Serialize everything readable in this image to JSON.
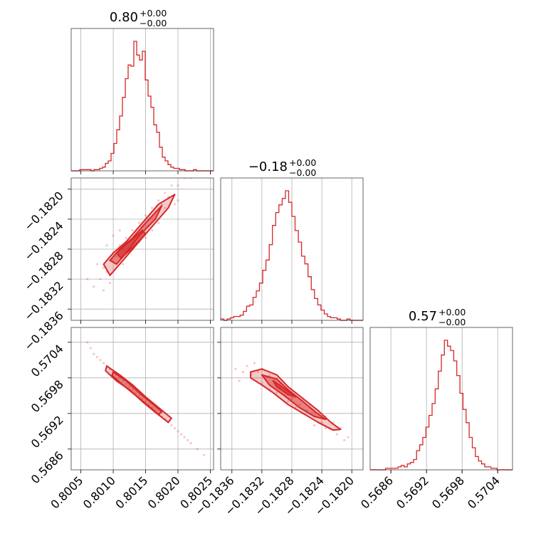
{
  "chart_data": {
    "type": "corner",
    "color": "#d62728",
    "parameters": [
      {
        "title_value": "0.80",
        "title_plus": "+0.00",
        "title_minus": "−0.00",
        "range": [
          0.80035,
          0.80255
        ],
        "ticks": [
          0.8005,
          0.801,
          0.8015,
          0.802,
          0.8025
        ],
        "tick_labels": [
          "0.8005",
          "0.8010",
          "0.8015",
          "0.8020",
          "0.8025"
        ],
        "hist": {
          "edges_start": 0.80035,
          "edges_end": 0.80255,
          "counts": [
            0,
            0,
            0,
            1,
            1,
            1,
            1,
            0,
            1,
            1,
            2,
            3,
            6,
            8,
            14,
            22,
            33,
            44,
            59,
            74,
            85,
            84,
            104,
            93,
            89,
            96,
            73,
            60,
            51,
            37,
            31,
            19,
            11,
            8,
            5,
            3,
            2,
            2,
            1,
            1,
            0,
            0,
            0,
            1,
            0,
            0,
            0,
            0,
            0,
            0
          ]
        }
      },
      {
        "title_value": "−0.18",
        "title_plus": "+0.00",
        "title_minus": "−0.00",
        "range": [
          -0.18375,
          -0.18185
        ],
        "ticks": [
          -0.1836,
          -0.1832,
          -0.1828,
          -0.1824,
          -0.182
        ],
        "tick_labels": [
          "−0.1836",
          "−0.1832",
          "−0.1828",
          "−0.1824",
          "−0.1820"
        ],
        "hist": {
          "edges_start": -0.18375,
          "edges_end": -0.18185,
          "counts": [
            1,
            0,
            1,
            2,
            3,
            3,
            4,
            7,
            11,
            12,
            18,
            23,
            29,
            39,
            47,
            59,
            74,
            84,
            90,
            95,
            101,
            92,
            81,
            70,
            61,
            50,
            44,
            34,
            24,
            17,
            12,
            8,
            5,
            3,
            2,
            2,
            1,
            0,
            0,
            1,
            0,
            0,
            0,
            0
          ]
        }
      },
      {
        "title_value": "0.57",
        "title_plus": "+0.00",
        "title_minus": "−0.00",
        "range": [
          0.56825,
          0.57065
        ],
        "ticks": [
          0.5686,
          0.5692,
          0.5698,
          0.5704
        ],
        "tick_labels": [
          "0.5686",
          "0.5692",
          "0.5698",
          "0.5704"
        ],
        "hist": {
          "edges_start": 0.56825,
          "edges_end": 0.57065,
          "counts": [
            0,
            0,
            0,
            0,
            0,
            1,
            1,
            1,
            1,
            2,
            3,
            2,
            4,
            5,
            7,
            13,
            17,
            22,
            29,
            37,
            45,
            55,
            67,
            78,
            88,
            84,
            81,
            74,
            64,
            52,
            41,
            32,
            22,
            15,
            9,
            6,
            4,
            2,
            2,
            1,
            1,
            0,
            0,
            0,
            0,
            0
          ]
        }
      }
    ],
    "pairs": [
      {
        "row": 1,
        "col": 0,
        "points": [
          [
            0.80085,
            -0.18305
          ],
          [
            0.80095,
            -0.18295
          ],
          [
            0.801,
            -0.18285
          ],
          [
            0.8011,
            -0.18275
          ],
          [
            0.8012,
            -0.18265
          ],
          [
            0.8013,
            -0.18255
          ],
          [
            0.8014,
            -0.18245
          ],
          [
            0.8015,
            -0.18235
          ],
          [
            0.8016,
            -0.18225
          ],
          [
            0.8017,
            -0.18215
          ],
          [
            0.8018,
            -0.18205
          ],
          [
            0.8019,
            -0.18195
          ],
          [
            0.8008,
            -0.1832
          ],
          [
            0.8009,
            -0.1831
          ],
          [
            0.80105,
            -0.1829
          ],
          [
            0.80115,
            -0.1828
          ],
          [
            0.80125,
            -0.1827
          ],
          [
            0.80135,
            -0.1826
          ],
          [
            0.80145,
            -0.1825
          ],
          [
            0.80155,
            -0.1824
          ],
          [
            0.80165,
            -0.1823
          ],
          [
            0.80175,
            -0.1822
          ],
          [
            0.80185,
            -0.1821
          ],
          [
            0.802,
            -0.18195
          ],
          [
            0.8021,
            -0.18185
          ],
          [
            0.8022,
            -0.18185
          ],
          [
            0.8006,
            -0.1832
          ],
          [
            0.8007,
            -0.1833
          ],
          [
            0.80075,
            -0.183
          ],
          [
            0.8009,
            -0.18275
          ],
          [
            0.801,
            -0.18262
          ],
          [
            0.8011,
            -0.18255
          ],
          [
            0.8012,
            -0.1829
          ],
          [
            0.8013,
            -0.1828
          ],
          [
            0.8014,
            -0.1827
          ],
          [
            0.8016,
            -0.18255
          ],
          [
            0.8017,
            -0.18245
          ],
          [
            0.8018,
            -0.18225
          ],
          [
            0.802,
            -0.18215
          ],
          [
            0.80085,
            -0.18335
          ],
          [
            0.80095,
            -0.18325
          ],
          [
            0.80115,
            -0.183
          ],
          [
            0.8015,
            -0.18265
          ],
          [
            0.80195,
            -0.1822
          ]
        ],
        "contours": [
          [
            [
              0.80085,
              -0.183
            ],
            [
              0.801,
              -0.18285
            ],
            [
              0.8012,
              -0.1827
            ],
            [
              0.80145,
              -0.18245
            ],
            [
              0.8017,
              -0.1822
            ],
            [
              0.80195,
              -0.18207
            ],
            [
              0.80185,
              -0.18225
            ],
            [
              0.8016,
              -0.1825
            ],
            [
              0.80135,
              -0.18275
            ],
            [
              0.8011,
              -0.183
            ],
            [
              0.80095,
              -0.18315
            ]
          ],
          [
            [
              0.80095,
              -0.18295
            ],
            [
              0.8011,
              -0.1828
            ],
            [
              0.8013,
              -0.18265
            ],
            [
              0.8015,
              -0.18245
            ],
            [
              0.80175,
              -0.18222
            ],
            [
              0.80165,
              -0.1824
            ],
            [
              0.8014,
              -0.18262
            ],
            [
              0.8012,
              -0.18285
            ],
            [
              0.80105,
              -0.183
            ]
          ],
          [
            [
              0.80105,
              -0.18285
            ],
            [
              0.80125,
              -0.1827
            ],
            [
              0.80145,
              -0.18255
            ],
            [
              0.8015,
              -0.1826
            ],
            [
              0.8013,
              -0.18278
            ],
            [
              0.80112,
              -0.18292
            ]
          ]
        ]
      },
      {
        "row": 2,
        "col": 0,
        "points": [
          [
            0.8008,
            0.5701
          ],
          [
            0.8009,
            0.57
          ],
          [
            0.801,
            0.5699
          ],
          [
            0.8011,
            0.5698
          ],
          [
            0.8012,
            0.5697
          ],
          [
            0.8013,
            0.5696
          ],
          [
            0.8014,
            0.5695
          ],
          [
            0.8015,
            0.5694
          ],
          [
            0.8016,
            0.5693
          ],
          [
            0.8017,
            0.5692
          ],
          [
            0.8018,
            0.5691
          ],
          [
            0.8019,
            0.569
          ],
          [
            0.802,
            0.5689
          ],
          [
            0.8021,
            0.5688
          ],
          [
            0.8022,
            0.5687
          ],
          [
            0.8023,
            0.5686
          ],
          [
            0.80085,
            0.57005
          ],
          [
            0.80095,
            0.56995
          ],
          [
            0.80105,
            0.56985
          ],
          [
            0.80115,
            0.56975
          ],
          [
            0.80125,
            0.56965
          ],
          [
            0.80135,
            0.56955
          ],
          [
            0.80145,
            0.56945
          ],
          [
            0.80155,
            0.56935
          ],
          [
            0.80165,
            0.56925
          ],
          [
            0.80175,
            0.56915
          ],
          [
            0.80185,
            0.56905
          ],
          [
            0.80195,
            0.56895
          ],
          [
            0.8007,
            0.5702
          ],
          [
            0.8006,
            0.5704
          ],
          [
            0.80065,
            0.5703
          ],
          [
            0.80075,
            0.57015
          ],
          [
            0.80205,
            0.56885
          ],
          [
            0.80215,
            0.56875
          ],
          [
            0.8024,
            0.5685
          ]
        ],
        "contours": [
          [
            [
              0.8009,
              0.57
            ],
            [
              0.8011,
              0.56985
            ],
            [
              0.8013,
              0.56968
            ],
            [
              0.8015,
              0.56948
            ],
            [
              0.8017,
              0.5693
            ],
            [
              0.8019,
              0.56912
            ],
            [
              0.80185,
              0.56905
            ],
            [
              0.80165,
              0.56922
            ],
            [
              0.80145,
              0.5694
            ],
            [
              0.80125,
              0.5696
            ],
            [
              0.80105,
              0.56975
            ],
            [
              0.80088,
              0.56992
            ]
          ],
          [
            [
              0.801,
              0.5699
            ],
            [
              0.8012,
              0.56975
            ],
            [
              0.8014,
              0.56955
            ],
            [
              0.8016,
              0.56937
            ],
            [
              0.80175,
              0.56923
            ],
            [
              0.8017,
              0.56918
            ],
            [
              0.80155,
              0.56932
            ],
            [
              0.80135,
              0.5695
            ],
            [
              0.80115,
              0.56968
            ],
            [
              0.80098,
              0.56984
            ]
          ]
        ]
      },
      {
        "row": 2,
        "col": 1,
        "points": [
          [
            -0.18345,
            0.5699
          ],
          [
            -0.18335,
            0.56985
          ],
          [
            -0.18325,
            0.5699
          ],
          [
            -0.18315,
            0.5698
          ],
          [
            -0.18305,
            0.56975
          ],
          [
            -0.18295,
            0.5697
          ],
          [
            -0.18285,
            0.5696
          ],
          [
            -0.18275,
            0.56955
          ],
          [
            -0.18265,
            0.56945
          ],
          [
            -0.18255,
            0.56935
          ],
          [
            -0.18245,
            0.56925
          ],
          [
            -0.18235,
            0.56915
          ],
          [
            -0.18225,
            0.56905
          ],
          [
            -0.18215,
            0.56895
          ],
          [
            -0.18205,
            0.5688
          ],
          [
            -0.1834,
            0.57
          ],
          [
            -0.1833,
            0.57005
          ],
          [
            -0.1832,
            0.56995
          ],
          [
            -0.1831,
            0.56985
          ],
          [
            -0.183,
            0.56965
          ],
          [
            -0.1829,
            0.5695
          ],
          [
            -0.1828,
            0.56945
          ],
          [
            -0.1827,
            0.56935
          ],
          [
            -0.1826,
            0.56925
          ],
          [
            -0.1825,
            0.56915
          ],
          [
            -0.1824,
            0.56905
          ],
          [
            -0.1823,
            0.56895
          ],
          [
            -0.1822,
            0.56885
          ],
          [
            -0.1832,
            0.5697
          ],
          [
            -0.1831,
            0.5696
          ],
          [
            -0.183,
            0.56955
          ],
          [
            -0.18285,
            0.5694
          ],
          [
            -0.18275,
            0.5693
          ],
          [
            -0.18265,
            0.5692
          ],
          [
            -0.1825,
            0.569
          ],
          [
            -0.18235,
            0.56895
          ],
          [
            -0.18355,
            0.56995
          ],
          [
            -0.1835,
            0.56975
          ],
          [
            -0.1821,
            0.56875
          ]
        ],
        "contours": [
          [
            [
              -0.18335,
              0.5699
            ],
            [
              -0.1832,
              0.56995
            ],
            [
              -0.183,
              0.56985
            ],
            [
              -0.18285,
              0.56965
            ],
            [
              -0.18265,
              0.56945
            ],
            [
              -0.18245,
              0.56925
            ],
            [
              -0.18228,
              0.56905
            ],
            [
              -0.18215,
              0.56893
            ],
            [
              -0.18225,
              0.56892
            ],
            [
              -0.18245,
              0.56905
            ],
            [
              -0.18265,
              0.5692
            ],
            [
              -0.18285,
              0.56935
            ],
            [
              -0.18305,
              0.56955
            ],
            [
              -0.1832,
              0.56968
            ],
            [
              -0.18335,
              0.5698
            ]
          ],
          [
            [
              -0.1832,
              0.56985
            ],
            [
              -0.183,
              0.56978
            ],
            [
              -0.18285,
              0.5696
            ],
            [
              -0.18265,
              0.5694
            ],
            [
              -0.18248,
              0.56922
            ],
            [
              -0.18235,
              0.5691
            ],
            [
              -0.1825,
              0.56915
            ],
            [
              -0.1827,
              0.5693
            ],
            [
              -0.1829,
              0.5695
            ],
            [
              -0.1831,
              0.56968
            ]
          ],
          [
            [
              -0.18305,
              0.56975
            ],
            [
              -0.1829,
              0.56962
            ],
            [
              -0.18275,
              0.56948
            ],
            [
              -0.18285,
              0.56952
            ],
            [
              -0.183,
              0.56965
            ]
          ]
        ]
      }
    ]
  }
}
